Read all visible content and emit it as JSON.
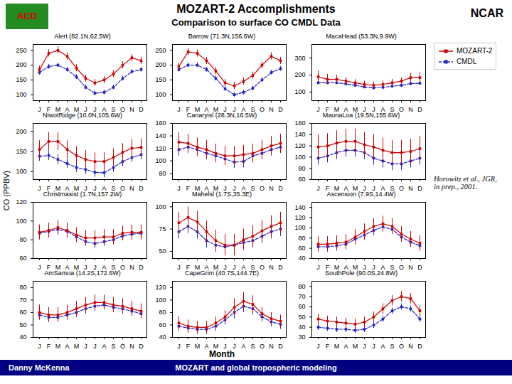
{
  "title": "MOZART-2 Accomplishments",
  "subtitle": "Comparison to surface CO CMDL Data",
  "xlabel": "Month",
  "ylabel": "CO (PPBV)",
  "annotations": [
    "ACD",
    "NCAR",
    "Horowitz et al., JGR,\nin prep., 2001.",
    "Danny McKenna",
    "MOZART and global tropospheric modeling"
  ],
  "chart_data": [
    {
      "type": "line",
      "title": "Alert (82.1N,62.5W)",
      "legend": "upper right",
      "categories": [
        "J",
        "F",
        "M",
        "A",
        "M",
        "J",
        "J",
        "A",
        "S",
        "O",
        "N",
        "D"
      ],
      "ylim": [
        80,
        270
      ],
      "yticks": [
        100,
        150,
        200,
        250
      ],
      "series": [
        {
          "name": "MOZART-2",
          "color": "#CC0000",
          "marker": "square",
          "line_style": "solid",
          "values": [
            185,
            240,
            250,
            230,
            190,
            155,
            140,
            150,
            170,
            200,
            225,
            215
          ],
          "errors": [
            12,
            12,
            12,
            12,
            12,
            12,
            12,
            12,
            12,
            12,
            12,
            12
          ]
        },
        {
          "name": "CMDL",
          "color": "#2222CC",
          "marker": "square",
          "line_style": "dashed",
          "values": [
            175,
            195,
            200,
            185,
            160,
            125,
            105,
            108,
            125,
            155,
            178,
            185
          ],
          "errors": [
            8,
            8,
            8,
            8,
            8,
            8,
            8,
            8,
            8,
            8,
            8,
            8
          ]
        }
      ]
    },
    {
      "type": "line",
      "title": "Barrow (71.3N,156.6W)",
      "categories": [
        "J",
        "F",
        "M",
        "A",
        "M",
        "J",
        "J",
        "A",
        "S",
        "O",
        "N",
        "D"
      ],
      "ylim": [
        80,
        270
      ],
      "yticks": [
        100,
        150,
        200,
        250
      ],
      "series": [
        {
          "name": "MOZART-2",
          "color": "#CC0000",
          "marker": "square",
          "line_style": "solid",
          "values": [
            195,
            245,
            240,
            215,
            180,
            140,
            130,
            145,
            165,
            200,
            230,
            215
          ],
          "errors": [
            12,
            12,
            12,
            12,
            12,
            12,
            12,
            12,
            12,
            12,
            12,
            12
          ]
        },
        {
          "name": "CMDL",
          "color": "#2222CC",
          "marker": "square",
          "line_style": "dashed",
          "values": [
            185,
            200,
            200,
            185,
            155,
            120,
            100,
            108,
            122,
            150,
            175,
            188
          ],
          "errors": [
            8,
            8,
            8,
            8,
            8,
            8,
            8,
            8,
            8,
            8,
            8,
            8
          ]
        }
      ]
    },
    {
      "type": "line",
      "title": "MacaHead (53.3N,9.9W)",
      "categories": [
        "J",
        "F",
        "M",
        "A",
        "M",
        "J",
        "J",
        "A",
        "S",
        "O",
        "N",
        "D"
      ],
      "ylim": [
        50,
        380
      ],
      "yticks": [
        100,
        200,
        300
      ],
      "series": [
        {
          "name": "MOZART-2",
          "color": "#CC0000",
          "marker": "square",
          "line_style": "solid",
          "values": [
            190,
            175,
            175,
            165,
            155,
            145,
            140,
            145,
            155,
            165,
            185,
            185
          ],
          "errors": [
            35,
            30,
            25,
            20,
            20,
            20,
            20,
            20,
            20,
            20,
            25,
            30
          ]
        },
        {
          "name": "CMDL",
          "color": "#2222CC",
          "marker": "square",
          "line_style": "dashed",
          "values": [
            155,
            155,
            155,
            148,
            140,
            130,
            125,
            128,
            135,
            140,
            150,
            152
          ],
          "errors": [
            10,
            10,
            10,
            10,
            10,
            10,
            10,
            10,
            10,
            10,
            10,
            10
          ]
        }
      ]
    },
    {
      "type": "line",
      "title": "NiwotRidge (10.0N,105.6W)",
      "categories": [
        "J",
        "F",
        "M",
        "A",
        "M",
        "J",
        "J",
        "A",
        "S",
        "O",
        "N",
        "D"
      ],
      "ylim": [
        80,
        220
      ],
      "yticks": [
        100,
        150,
        200
      ],
      "series": [
        {
          "name": "MOZART-2",
          "color": "#CC0000",
          "marker": "square",
          "line_style": "solid",
          "values": [
            155,
            175,
            175,
            155,
            140,
            130,
            125,
            125,
            135,
            148,
            158,
            160
          ],
          "errors": [
            22,
            22,
            22,
            22,
            22,
            22,
            22,
            22,
            22,
            22,
            22,
            22
          ]
        },
        {
          "name": "CMDL",
          "color": "#2222CC",
          "marker": "square",
          "line_style": "dashed",
          "values": [
            138,
            140,
            130,
            120,
            110,
            105,
            98,
            97,
            110,
            125,
            135,
            142
          ],
          "errors": [
            12,
            12,
            12,
            12,
            12,
            12,
            12,
            12,
            12,
            12,
            12,
            12
          ]
        }
      ]
    },
    {
      "type": "line",
      "title": "Canaryisl (28.3N,16.5W)",
      "categories": [
        "J",
        "F",
        "M",
        "A",
        "M",
        "J",
        "J",
        "A",
        "S",
        "O",
        "N",
        "D"
      ],
      "ylim": [
        70,
        160
      ],
      "yticks": [
        80,
        100,
        120,
        140,
        160
      ],
      "series": [
        {
          "name": "MOZART-2",
          "color": "#CC0000",
          "marker": "square",
          "line_style": "solid",
          "values": [
            130,
            128,
            122,
            118,
            112,
            108,
            108,
            110,
            112,
            118,
            124,
            128
          ],
          "errors": [
            15,
            15,
            15,
            15,
            15,
            15,
            15,
            15,
            15,
            15,
            15,
            15
          ]
        },
        {
          "name": "CMDL",
          "color": "#2222CC",
          "marker": "square",
          "line_style": "dashed",
          "values": [
            118,
            122,
            118,
            112,
            108,
            103,
            98,
            99,
            108,
            112,
            118,
            122
          ],
          "errors": [
            10,
            10,
            10,
            10,
            10,
            10,
            10,
            10,
            10,
            10,
            10,
            10
          ]
        }
      ]
    },
    {
      "type": "line",
      "title": "MaunaLoa (19.5N,155.6W)",
      "categories": [
        "J",
        "F",
        "M",
        "A",
        "M",
        "J",
        "J",
        "A",
        "S",
        "O",
        "N",
        "D"
      ],
      "ylim": [
        60,
        160
      ],
      "yticks": [
        60,
        80,
        100,
        120,
        140,
        160
      ],
      "series": [
        {
          "name": "MOZART-2",
          "color": "#CC0000",
          "marker": "square",
          "line_style": "solid",
          "values": [
            118,
            120,
            125,
            128,
            128,
            122,
            118,
            112,
            108,
            108,
            110,
            115
          ],
          "errors": [
            22,
            22,
            22,
            22,
            22,
            22,
            22,
            22,
            22,
            22,
            22,
            22
          ]
        },
        {
          "name": "CMDL",
          "color": "#2222CC",
          "marker": "square",
          "line_style": "dashed",
          "values": [
            98,
            102,
            108,
            112,
            112,
            108,
            98,
            93,
            88,
            88,
            93,
            98
          ],
          "errors": [
            12,
            12,
            12,
            12,
            12,
            12,
            12,
            12,
            12,
            12,
            12,
            12
          ]
        }
      ]
    },
    {
      "type": "line",
      "title": "Christmasist (1.7N,157.2W)",
      "categories": [
        "J",
        "F",
        "M",
        "A",
        "M",
        "J",
        "J",
        "A",
        "S",
        "O",
        "N",
        "D"
      ],
      "ylim": [
        60,
        120
      ],
      "yticks": [
        60,
        80,
        100,
        120
      ],
      "series": [
        {
          "name": "MOZART-2",
          "color": "#CC0000",
          "marker": "square",
          "line_style": "solid",
          "values": [
            88,
            90,
            93,
            90,
            85,
            82,
            82,
            83,
            83,
            87,
            88,
            88
          ],
          "errors": [
            8,
            8,
            8,
            8,
            8,
            8,
            8,
            8,
            8,
            8,
            8,
            8
          ]
        },
        {
          "name": "CMDL",
          "color": "#2222CC",
          "marker": "square",
          "line_style": "dashed",
          "values": [
            87,
            89,
            91,
            89,
            83,
            78,
            76,
            78,
            80,
            84,
            86,
            87
          ],
          "errors": [
            5,
            5,
            5,
            5,
            5,
            5,
            5,
            5,
            5,
            5,
            5,
            5
          ]
        }
      ]
    },
    {
      "type": "line",
      "title": "Mahelsl (1.7S,35.3E)",
      "categories": [
        "J",
        "F",
        "M",
        "A",
        "M",
        "J",
        "J",
        "A",
        "S",
        "O",
        "N",
        "D"
      ],
      "ylim": [
        42,
        105
      ],
      "yticks": [
        50,
        75,
        100
      ],
      "series": [
        {
          "name": "MOZART-2",
          "color": "#CC0000",
          "marker": "square",
          "line_style": "solid",
          "values": [
            82,
            88,
            83,
            72,
            62,
            57,
            57,
            63,
            67,
            73,
            78,
            82
          ],
          "errors": [
            12,
            12,
            12,
            12,
            12,
            12,
            12,
            12,
            12,
            12,
            12,
            12
          ]
        },
        {
          "name": "CMDL",
          "color": "#2222CC",
          "marker": "square",
          "line_style": "dashed",
          "values": [
            72,
            78,
            72,
            62,
            57,
            55,
            57,
            60,
            62,
            67,
            72,
            75
          ],
          "errors": [
            8,
            8,
            8,
            8,
            8,
            8,
            8,
            8,
            8,
            8,
            8,
            8
          ]
        }
      ]
    },
    {
      "type": "line",
      "title": "Ascension (7.9S,14.4W)",
      "categories": [
        "J",
        "F",
        "M",
        "A",
        "M",
        "J",
        "J",
        "A",
        "S",
        "O",
        "N",
        "D"
      ],
      "ylim": [
        40,
        150
      ],
      "yticks": [
        40,
        60,
        80,
        100,
        120,
        140
      ],
      "series": [
        {
          "name": "MOZART-2",
          "color": "#CC0000",
          "marker": "square",
          "line_style": "solid",
          "values": [
            68,
            68,
            70,
            72,
            82,
            93,
            103,
            108,
            103,
            88,
            78,
            70
          ],
          "errors": [
            15,
            15,
            15,
            15,
            15,
            15,
            15,
            15,
            15,
            15,
            15,
            15
          ]
        },
        {
          "name": "CMDL",
          "color": "#2222CC",
          "marker": "square",
          "line_style": "dashed",
          "values": [
            63,
            63,
            65,
            68,
            78,
            86,
            95,
            102,
            97,
            82,
            72,
            65
          ],
          "errors": [
            10,
            10,
            10,
            10,
            10,
            10,
            10,
            10,
            10,
            10,
            10,
            10
          ]
        }
      ]
    },
    {
      "type": "line",
      "title": "AmSamoa (14.2S,172.6W)",
      "categories": [
        "J",
        "F",
        "M",
        "A",
        "M",
        "J",
        "J",
        "A",
        "S",
        "O",
        "N",
        "D"
      ],
      "ylim": [
        40,
        85
      ],
      "yticks": [
        40,
        50,
        60,
        70,
        80
      ],
      "series": [
        {
          "name": "MOZART-2",
          "color": "#CC0000",
          "marker": "square",
          "line_style": "solid",
          "values": [
            60,
            58,
            58,
            60,
            63,
            66,
            68,
            68,
            66,
            65,
            63,
            61
          ],
          "errors": [
            6,
            6,
            6,
            6,
            6,
            6,
            6,
            6,
            6,
            6,
            6,
            6
          ]
        },
        {
          "name": "CMDL",
          "color": "#2222CC",
          "marker": "square",
          "line_style": "dashed",
          "values": [
            58,
            56,
            56,
            58,
            60,
            63,
            65,
            66,
            64,
            63,
            61,
            59
          ],
          "errors": [
            4,
            4,
            4,
            4,
            4,
            4,
            4,
            4,
            4,
            4,
            4,
            4
          ]
        }
      ]
    },
    {
      "type": "line",
      "title": "CapeGrim (40.7S,144.7E)",
      "categories": [
        "J",
        "F",
        "M",
        "A",
        "M",
        "J",
        "J",
        "A",
        "S",
        "O",
        "N",
        "D"
      ],
      "ylim": [
        40,
        130
      ],
      "yticks": [
        40,
        60,
        80,
        100,
        120
      ],
      "series": [
        {
          "name": "MOZART-2",
          "color": "#CC0000",
          "marker": "square",
          "line_style": "solid",
          "values": [
            63,
            58,
            56,
            56,
            63,
            73,
            88,
            98,
            93,
            78,
            70,
            66
          ],
          "errors": [
            10,
            10,
            10,
            10,
            10,
            10,
            14,
            14,
            14,
            10,
            10,
            10
          ]
        },
        {
          "name": "CMDL",
          "color": "#2222CC",
          "marker": "square",
          "line_style": "dashed",
          "values": [
            58,
            55,
            53,
            53,
            58,
            68,
            80,
            90,
            86,
            73,
            65,
            61
          ],
          "errors": [
            8,
            8,
            8,
            8,
            8,
            8,
            10,
            10,
            10,
            8,
            8,
            8
          ]
        }
      ]
    },
    {
      "type": "line",
      "title": "SouthPole (90.0S,24.8W)",
      "categories": [
        "J",
        "F",
        "M",
        "A",
        "M",
        "J",
        "J",
        "A",
        "S",
        "O",
        "N",
        "D"
      ],
      "ylim": [
        30,
        85
      ],
      "yticks": [
        30,
        40,
        50,
        60,
        70,
        80
      ],
      "series": [
        {
          "name": "MOZART-2",
          "color": "#CC0000",
          "marker": "square",
          "line_style": "solid",
          "values": [
            48,
            46,
            45,
            44,
            43,
            45,
            50,
            58,
            66,
            70,
            68,
            56
          ],
          "errors": [
            5,
            5,
            5,
            5,
            5,
            5,
            5,
            5,
            5,
            5,
            5,
            5
          ]
        },
        {
          "name": "CMDL",
          "color": "#2222CC",
          "marker": "square",
          "line_style": "dashed",
          "values": [
            40,
            39,
            38,
            38,
            37,
            38,
            42,
            48,
            56,
            60,
            58,
            48
          ],
          "errors": [
            3,
            3,
            3,
            3,
            3,
            3,
            3,
            3,
            3,
            3,
            3,
            3
          ]
        }
      ]
    }
  ]
}
